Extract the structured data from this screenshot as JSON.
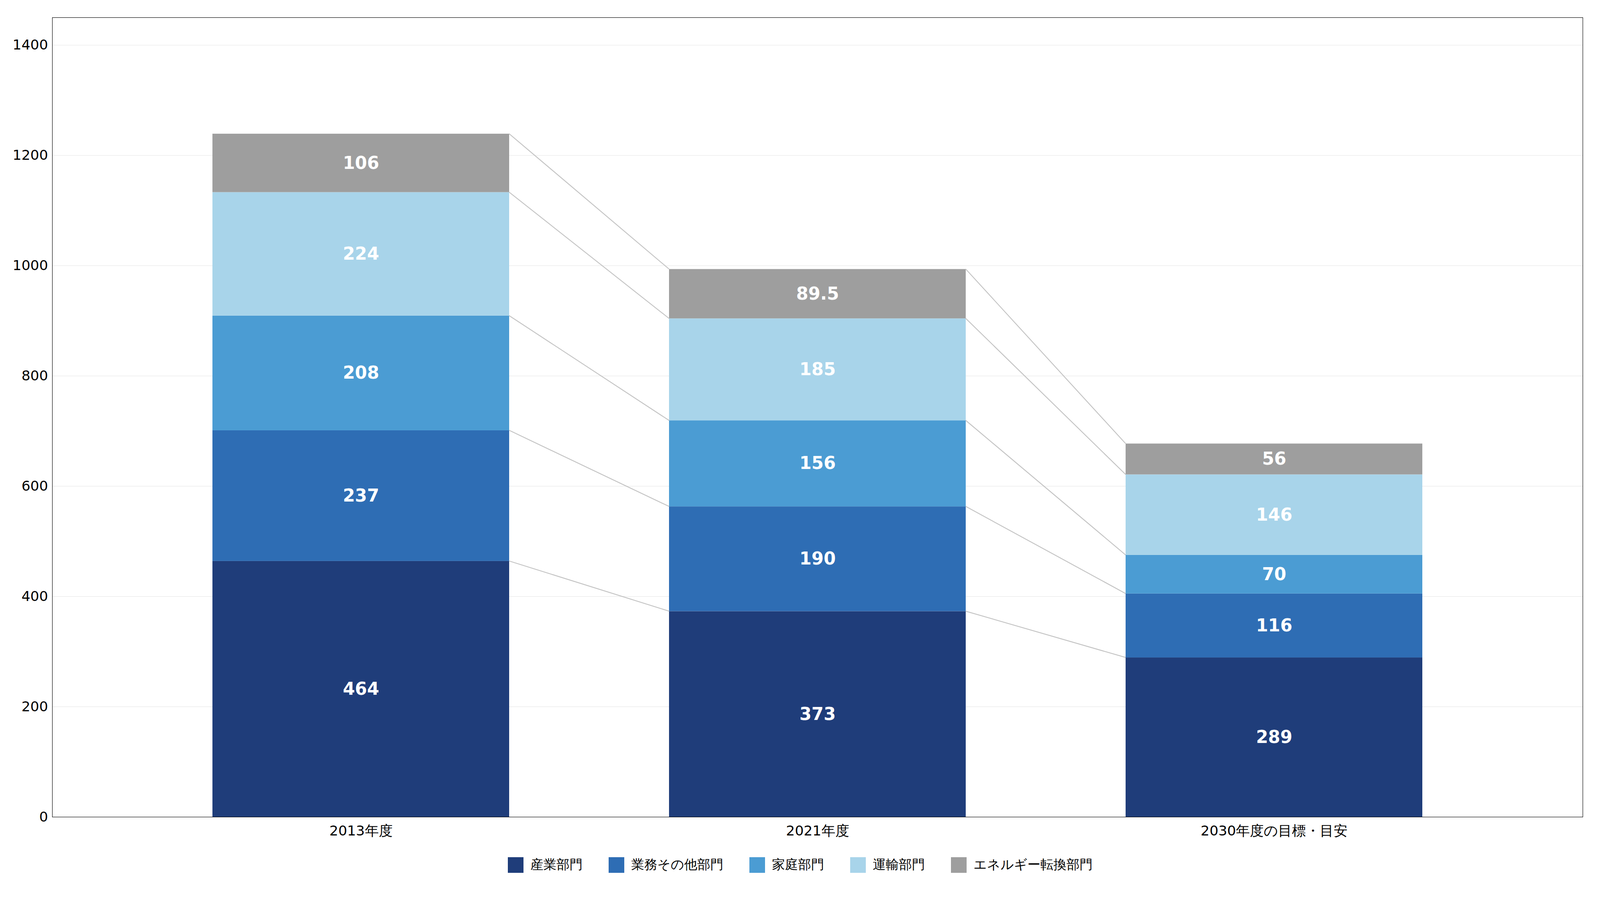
{
  "chart_data": {
    "type": "bar",
    "stacked": true,
    "categories": [
      "2013年度",
      "2021年度",
      "2030年度の目標・目安"
    ],
    "series": [
      {
        "name": "産業部門",
        "color": "#1f3d7a",
        "values": [
          464,
          373,
          289
        ]
      },
      {
        "name": "業務その他部門",
        "color": "#2e6db4",
        "values": [
          237,
          190,
          116
        ]
      },
      {
        "name": "家庭部門",
        "color": "#4b9cd3",
        "values": [
          208,
          156,
          70
        ]
      },
      {
        "name": "運輸部門",
        "color": "#a8d4ea",
        "values": [
          224,
          185,
          146
        ]
      },
      {
        "name": "エネルギー転換部門",
        "color": "#9e9e9e",
        "values": [
          106,
          89.5,
          56
        ]
      }
    ],
    "ylim": [
      0,
      1450
    ],
    "yticks": [
      0,
      200,
      400,
      600,
      800,
      1000,
      1200,
      1400
    ],
    "grid": true,
    "data_labels": true,
    "legend": "bottom"
  }
}
